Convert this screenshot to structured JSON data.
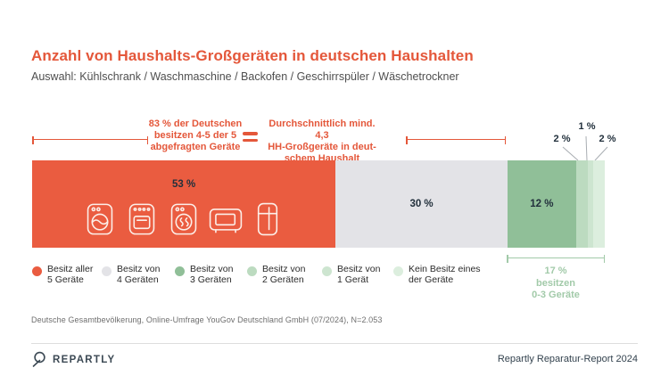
{
  "page": {
    "title": "Anzahl von Haushalts-Großgeräten in deutschen Haushalten",
    "subtitle": "Auswahl: Kühlschrank / Waschmaschine / Backofen / Geschirrspüler / Wäschetrockner",
    "source": "Deutsche Gesamtbevölkerung, Online-Umfrage YouGov Deutschland GmbH (07/2024), N=2.053"
  },
  "callouts": {
    "left": {
      "lines": [
        "83 % der Deutschen",
        "besitzen 4-5 der 5",
        "abgefragten Geräte"
      ]
    },
    "equals": "=",
    "right": {
      "lines": [
        "Durchschnittlich mind. 4,3",
        "HH-Großgeräte in deut-",
        "schem Haushalt"
      ]
    },
    "green": {
      "lines": [
        "17 %",
        "besitzen",
        "0-3 Geräte"
      ]
    }
  },
  "bar": {
    "labels": {
      "seg0": "53 %",
      "seg1": "30 %",
      "seg2": "12 %",
      "seg3": "2 %",
      "seg4": "1 %",
      "seg5": "2 %"
    },
    "icons": [
      "washing-machine",
      "oven",
      "dryer",
      "microwave",
      "fridge"
    ]
  },
  "legend": {
    "items": [
      {
        "lines": [
          "Besitz aller",
          "5 Geräte"
        ],
        "color": "#ea5c40"
      },
      {
        "lines": [
          "Besitz von",
          "4 Geräten"
        ],
        "color": "#e3e3e7"
      },
      {
        "lines": [
          "Besitz von",
          "3 Geräten"
        ],
        "color": "#90bf98"
      },
      {
        "lines": [
          "Besitz von",
          "2 Geräten"
        ],
        "color": "#bcdbc0"
      },
      {
        "lines": [
          "Besitz von",
          "1 Gerät"
        ],
        "color": "#cde5d0"
      },
      {
        "lines": [
          "Kein Besitz eines",
          "der Geräte"
        ],
        "color": "#dceede"
      }
    ]
  },
  "footer": {
    "brand": "REPARTLY",
    "report": "Repartly Reparatur-Report 2024"
  },
  "colors": {
    "accent_red": "#e4573a",
    "bar_red": "#ea5c40",
    "gray": "#e3e3e7",
    "green_mid": "#90bf98",
    "green_text": "#a2caa9",
    "text_dark": "#22303c"
  },
  "chart_data": {
    "type": "bar",
    "orientation": "horizontal_stacked",
    "title": "Anzahl von Haushalts-Großgeräten in deutschen Haushalten",
    "subtitle": "Auswahl: Kühlschrank / Waschmaschine / Backofen / Geschirrspüler / Wäschetrockner",
    "categories": [
      "Besitz aller 5 Geräte",
      "Besitz von 4 Geräten",
      "Besitz von 3 Geräten",
      "Besitz von 2 Geräten",
      "Besitz von 1 Gerät",
      "Kein Besitz eines der Geräte"
    ],
    "values": [
      53,
      30,
      12,
      2,
      1,
      2
    ],
    "unit": "%",
    "xlim": [
      0,
      100
    ],
    "colors": [
      "#ea5c40",
      "#e3e3e7",
      "#90bf98",
      "#bcdbc0",
      "#cde5d0",
      "#dceede"
    ],
    "legend_position": "bottom",
    "annotations": [
      "83 % der Deutschen besitzen 4-5 der 5 abgefragten Geräte",
      "Durchschnittlich mind. 4,3 HH-Großgeräte in deutschem Haushalt",
      "17 % besitzen 0-3 Geräte"
    ],
    "source": "Deutsche Gesamtbevölkerung, Online-Umfrage YouGov Deutschland GmbH (07/2024), N=2.053"
  }
}
